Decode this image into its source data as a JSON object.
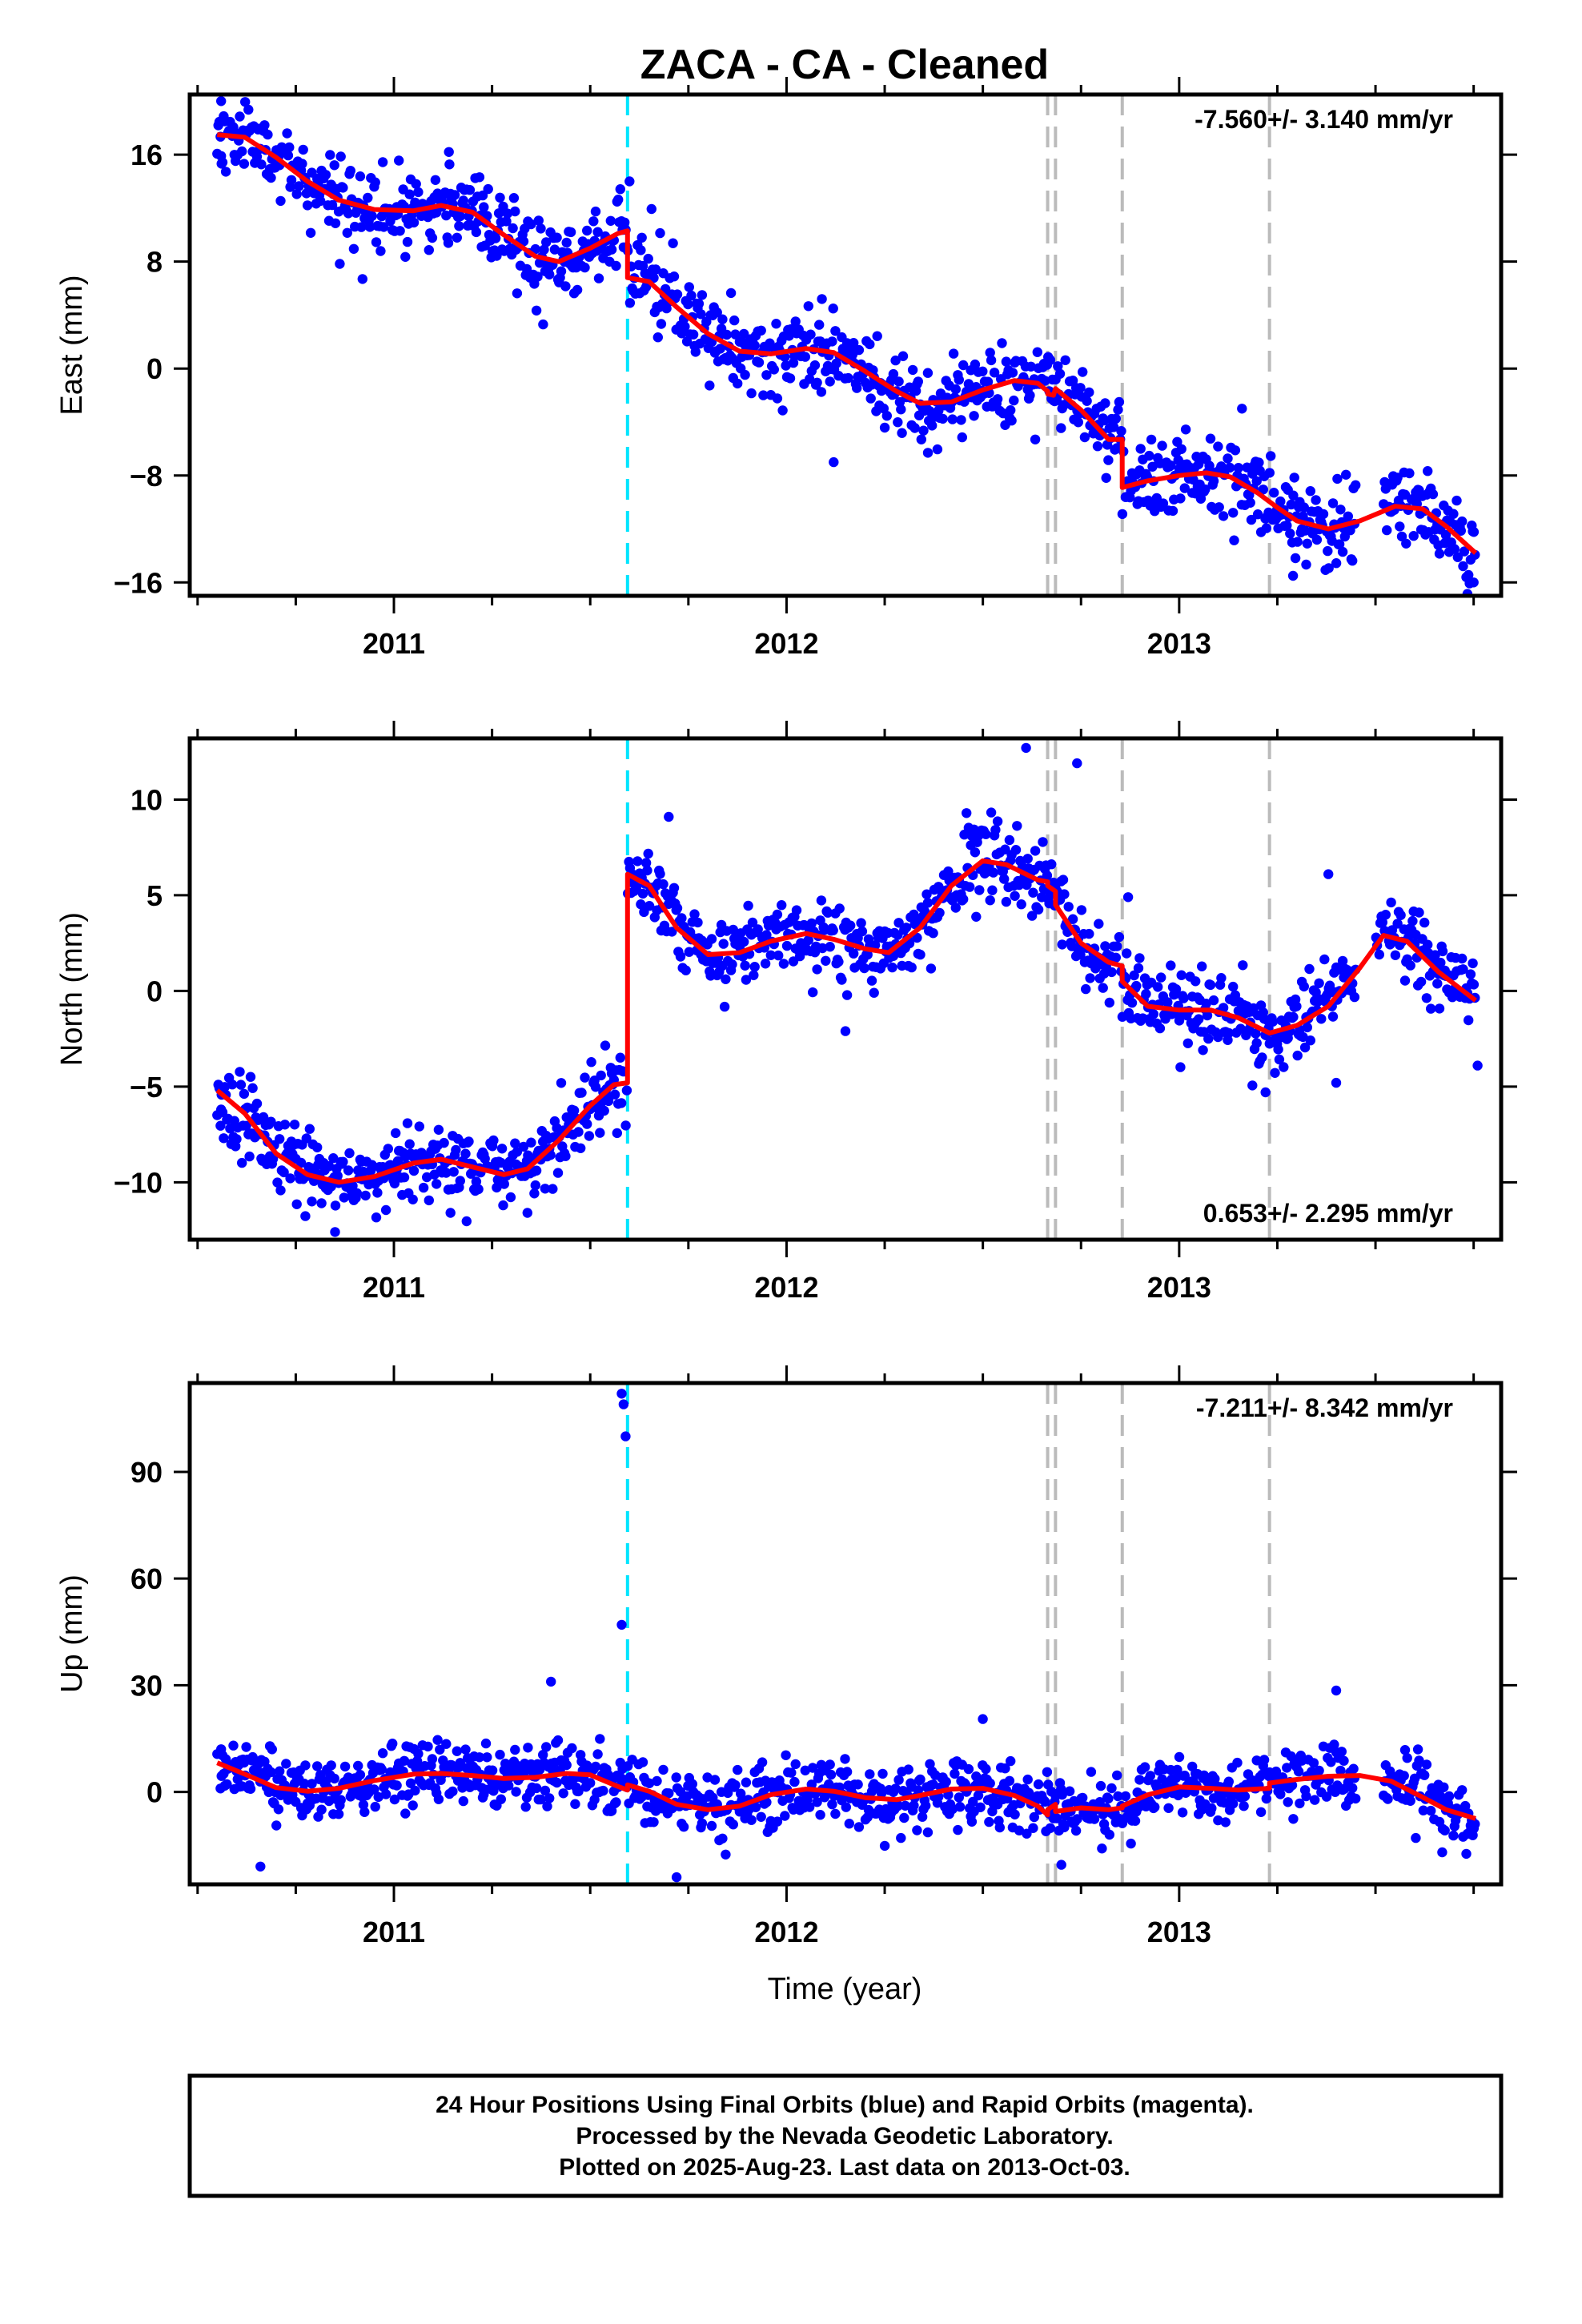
{
  "title": "ZACA  - CA - Cleaned",
  "xlabel": "Time (year)",
  "footer": [
    "24 Hour Positions Using Final Orbits (blue) and Rapid Orbits (magenta).",
    "Processed by the Nevada Geodetic Laboratory.",
    "Plotted on 2025-Aug-23. Last data on 2013-Oct-03."
  ],
  "colors": {
    "points": "#0000ff",
    "fit": "#ff0000",
    "offset_antenna": "#00e5ff",
    "offset_other": "#bbbbbb",
    "frame": "#000000"
  },
  "chart_data": [
    {
      "type": "scatter",
      "component": "east",
      "ylabel": "East (mm)",
      "ylim": [
        -17,
        20.5
      ],
      "yticks": [
        16,
        8,
        0,
        -8,
        -16
      ],
      "ytick_labels": [
        "16",
        "8",
        "0",
        "−8",
        "−16"
      ],
      "xlim": [
        2010.48,
        2013.82
      ],
      "xticks": [
        2011,
        2012,
        2013
      ],
      "xtick_labels": [
        "2011",
        "2012",
        "2013"
      ],
      "rate": "-7.560+/- 3.140 mm/yr",
      "rate_position": "top-right",
      "fit": [
        [
          2010.55,
          17.5
        ],
        [
          2010.62,
          17.3
        ],
        [
          2010.7,
          15.8
        ],
        [
          2010.78,
          14.0
        ],
        [
          2010.86,
          12.6
        ],
        [
          2010.95,
          11.9
        ],
        [
          2011.05,
          11.8
        ],
        [
          2011.12,
          12.2
        ],
        [
          2011.2,
          11.7
        ],
        [
          2011.28,
          10.0
        ],
        [
          2011.36,
          8.4
        ],
        [
          2011.42,
          8.0
        ],
        [
          2011.5,
          9.0
        ],
        [
          2011.57,
          10.1
        ],
        [
          2011.595,
          10.3
        ],
        [
          2011.595,
          6.8
        ],
        [
          2011.65,
          6.5
        ],
        [
          2011.72,
          4.6
        ],
        [
          2011.8,
          2.6
        ],
        [
          2011.88,
          1.3
        ],
        [
          2011.96,
          1.1
        ],
        [
          2012.05,
          1.5
        ],
        [
          2012.12,
          1.2
        ],
        [
          2012.2,
          -0.2
        ],
        [
          2012.28,
          -1.7
        ],
        [
          2012.34,
          -2.6
        ],
        [
          2012.42,
          -2.5
        ],
        [
          2012.5,
          -1.6
        ],
        [
          2012.58,
          -0.9
        ],
        [
          2012.64,
          -1.1
        ],
        [
          2012.665,
          -1.7
        ],
        [
          2012.665,
          -1.9
        ],
        [
          2012.68,
          -2.0
        ],
        [
          2012.685,
          -1.5
        ],
        [
          2012.75,
          -3.1
        ],
        [
          2012.82,
          -5.3
        ],
        [
          2012.855,
          -5.3
        ],
        [
          2012.855,
          -8.9
        ],
        [
          2012.92,
          -8.4
        ],
        [
          2013.0,
          -8.0
        ],
        [
          2013.07,
          -7.8
        ],
        [
          2013.13,
          -8.1
        ],
        [
          2013.2,
          -9.3
        ],
        [
          2013.25,
          -10.4
        ],
        [
          2013.3,
          -11.4
        ],
        [
          2013.38,
          -12.0
        ],
        [
          2013.46,
          -11.4
        ],
        [
          2013.55,
          -10.3
        ],
        [
          2013.62,
          -10.5
        ],
        [
          2013.68,
          -11.8
        ],
        [
          2013.755,
          -13.8
        ]
      ],
      "offsets": [
        {
          "x": 2011.595,
          "kind": "antenna"
        },
        {
          "x": 2012.665,
          "kind": "other"
        },
        {
          "x": 2012.685,
          "kind": "other"
        },
        {
          "x": 2012.855,
          "kind": "other"
        },
        {
          "x": 2013.23,
          "kind": "other"
        }
      ],
      "scatter_sd": 1.5,
      "gaps": [
        [
          2013.45,
          2013.52
        ]
      ],
      "seed": 11,
      "outliers": [
        [
          2010.56,
          20.0
        ],
        [
          2010.56,
          15.9
        ],
        [
          2010.92,
          6.7
        ],
        [
          2011.14,
          16.2
        ],
        [
          2011.38,
          3.3
        ],
        [
          2011.6,
          14.0
        ],
        [
          2012.09,
          5.2
        ],
        [
          2012.12,
          -7.0
        ],
        [
          2012.36,
          -6.3
        ],
        [
          2013.16,
          -3.0
        ],
        [
          2013.29,
          -15.5
        ],
        [
          2013.75,
          -16.0
        ]
      ]
    },
    {
      "type": "scatter",
      "component": "north",
      "ylabel": "North (mm)",
      "ylim": [
        -13,
        13.2
      ],
      "yticks": [
        10,
        5,
        0,
        -5,
        -10
      ],
      "ytick_labels": [
        "10",
        "5",
        "0",
        "−5",
        "−10"
      ],
      "xlim": [
        2010.48,
        2013.82
      ],
      "xticks": [
        2011,
        2012,
        2013
      ],
      "xtick_labels": [
        "2011",
        "2012",
        "2013"
      ],
      "rate": "0.653+/- 2.295 mm/yr",
      "rate_position": "bottom-right",
      "fit": [
        [
          2010.55,
          -5.2
        ],
        [
          2010.62,
          -6.4
        ],
        [
          2010.7,
          -8.5
        ],
        [
          2010.78,
          -9.6
        ],
        [
          2010.86,
          -10.0
        ],
        [
          2010.95,
          -9.7
        ],
        [
          2011.05,
          -9.0
        ],
        [
          2011.12,
          -8.8
        ],
        [
          2011.2,
          -9.2
        ],
        [
          2011.28,
          -9.6
        ],
        [
          2011.34,
          -9.3
        ],
        [
          2011.42,
          -7.8
        ],
        [
          2011.5,
          -6.0
        ],
        [
          2011.56,
          -4.9
        ],
        [
          2011.595,
          -4.8
        ],
        [
          2011.595,
          6.1
        ],
        [
          2011.65,
          5.5
        ],
        [
          2011.72,
          3.3
        ],
        [
          2011.8,
          1.9
        ],
        [
          2011.88,
          2.0
        ],
        [
          2011.96,
          2.6
        ],
        [
          2012.05,
          3.0
        ],
        [
          2012.12,
          2.7
        ],
        [
          2012.2,
          2.2
        ],
        [
          2012.26,
          2.0
        ],
        [
          2012.34,
          3.3
        ],
        [
          2012.42,
          5.5
        ],
        [
          2012.5,
          6.8
        ],
        [
          2012.56,
          6.6
        ],
        [
          2012.64,
          5.8
        ],
        [
          2012.665,
          5.7
        ],
        [
          2012.665,
          5.5
        ],
        [
          2012.685,
          5.2
        ],
        [
          2012.685,
          4.5
        ],
        [
          2012.75,
          2.5
        ],
        [
          2012.82,
          1.5
        ],
        [
          2012.855,
          1.3
        ],
        [
          2012.855,
          0.5
        ],
        [
          2012.92,
          -0.8
        ],
        [
          2013.0,
          -1.0
        ],
        [
          2013.08,
          -1.0
        ],
        [
          2013.15,
          -1.4
        ],
        [
          2013.23,
          -2.2
        ],
        [
          2013.3,
          -1.8
        ],
        [
          2013.38,
          -0.8
        ],
        [
          2013.46,
          1.2
        ],
        [
          2013.52,
          2.9
        ],
        [
          2013.58,
          2.6
        ],
        [
          2013.66,
          1.0
        ],
        [
          2013.755,
          -0.5
        ]
      ],
      "offsets": [
        {
          "x": 2011.595,
          "kind": "antenna"
        },
        {
          "x": 2012.665,
          "kind": "other"
        },
        {
          "x": 2012.685,
          "kind": "other"
        },
        {
          "x": 2012.855,
          "kind": "other"
        },
        {
          "x": 2013.23,
          "kind": "other"
        }
      ],
      "scatter_sd": 1.0,
      "gaps": [
        [
          2013.45,
          2013.5
        ]
      ],
      "seed": 23,
      "outliers": [
        [
          2010.56,
          -6.2
        ],
        [
          2010.85,
          -12.6
        ],
        [
          2011.34,
          -11.6
        ],
        [
          2011.7,
          9.1
        ],
        [
          2012.15,
          -2.1
        ],
        [
          2012.61,
          12.7
        ],
        [
          2012.74,
          11.9
        ],
        [
          2012.87,
          4.9
        ],
        [
          2013.22,
          -5.3
        ],
        [
          2013.38,
          6.1
        ],
        [
          2013.4,
          -4.8
        ],
        [
          2013.76,
          -3.9
        ]
      ]
    },
    {
      "type": "scatter",
      "component": "up",
      "ylabel": "Up (mm)",
      "ylim": [
        -26,
        115
      ],
      "yticks": [
        90,
        60,
        30,
        0
      ],
      "ytick_labels": [
        "90",
        "60",
        "30",
        "0"
      ],
      "xlim": [
        2010.48,
        2013.82
      ],
      "xticks": [
        2011,
        2012,
        2013
      ],
      "xtick_labels": [
        "2011",
        "2012",
        "2013"
      ],
      "rate": "-7.211+/- 8.342 mm/yr",
      "rate_position": "top-right",
      "fit": [
        [
          2010.55,
          8.2
        ],
        [
          2010.62,
          5.0
        ],
        [
          2010.7,
          1.2
        ],
        [
          2010.78,
          0.2
        ],
        [
          2010.86,
          1.0
        ],
        [
          2010.95,
          3.2
        ],
        [
          2011.05,
          5.0
        ],
        [
          2011.12,
          5.2
        ],
        [
          2011.2,
          4.6
        ],
        [
          2011.28,
          3.8
        ],
        [
          2011.36,
          4.1
        ],
        [
          2011.44,
          5.2
        ],
        [
          2011.5,
          4.8
        ],
        [
          2011.56,
          2.0
        ],
        [
          2011.595,
          0.5
        ],
        [
          2011.595,
          2.0
        ],
        [
          2011.65,
          0.2
        ],
        [
          2011.72,
          -3.5
        ],
        [
          2011.8,
          -5.0
        ],
        [
          2011.88,
          -4.0
        ],
        [
          2011.96,
          -0.8
        ],
        [
          2012.05,
          0.8
        ],
        [
          2012.12,
          0.2
        ],
        [
          2012.2,
          -1.6
        ],
        [
          2012.28,
          -2.2
        ],
        [
          2012.34,
          -1.0
        ],
        [
          2012.42,
          0.8
        ],
        [
          2012.5,
          1.0
        ],
        [
          2012.58,
          -1.0
        ],
        [
          2012.64,
          -4.0
        ],
        [
          2012.665,
          -6.5
        ],
        [
          2012.665,
          -5.0
        ],
        [
          2012.685,
          -3.5
        ],
        [
          2012.685,
          -5.5
        ],
        [
          2012.75,
          -4.5
        ],
        [
          2012.82,
          -5.0
        ],
        [
          2012.855,
          -4.5
        ],
        [
          2012.855,
          -4.0
        ],
        [
          2012.92,
          -0.8
        ],
        [
          2013.0,
          1.4
        ],
        [
          2013.08,
          1.0
        ],
        [
          2013.15,
          0.5
        ],
        [
          2013.23,
          1.0
        ],
        [
          2013.23,
          2.5
        ],
        [
          2013.3,
          3.5
        ],
        [
          2013.38,
          4.4
        ],
        [
          2013.46,
          4.6
        ],
        [
          2013.54,
          3.0
        ],
        [
          2013.62,
          -1.5
        ],
        [
          2013.68,
          -5.0
        ],
        [
          2013.755,
          -7.5
        ]
      ],
      "offsets": [
        {
          "x": 2011.595,
          "kind": "antenna"
        },
        {
          "x": 2012.665,
          "kind": "other"
        },
        {
          "x": 2012.685,
          "kind": "other"
        },
        {
          "x": 2012.855,
          "kind": "other"
        },
        {
          "x": 2013.23,
          "kind": "other"
        }
      ],
      "scatter_sd": 4.5,
      "gaps": [
        [
          2013.45,
          2013.52
        ]
      ],
      "seed": 37,
      "outliers": [
        [
          2011.58,
          112.0
        ],
        [
          2011.585,
          109.0
        ],
        [
          2011.59,
          100.0
        ],
        [
          2011.58,
          47.0
        ],
        [
          2011.4,
          31.0
        ],
        [
          2012.5,
          20.5
        ],
        [
          2013.4,
          28.5
        ],
        [
          2010.66,
          -21.0
        ],
        [
          2011.72,
          -24.0
        ],
        [
          2012.7,
          -20.5
        ],
        [
          2013.67,
          -17.0
        ],
        [
          2010.56,
          12.0
        ]
      ]
    }
  ]
}
